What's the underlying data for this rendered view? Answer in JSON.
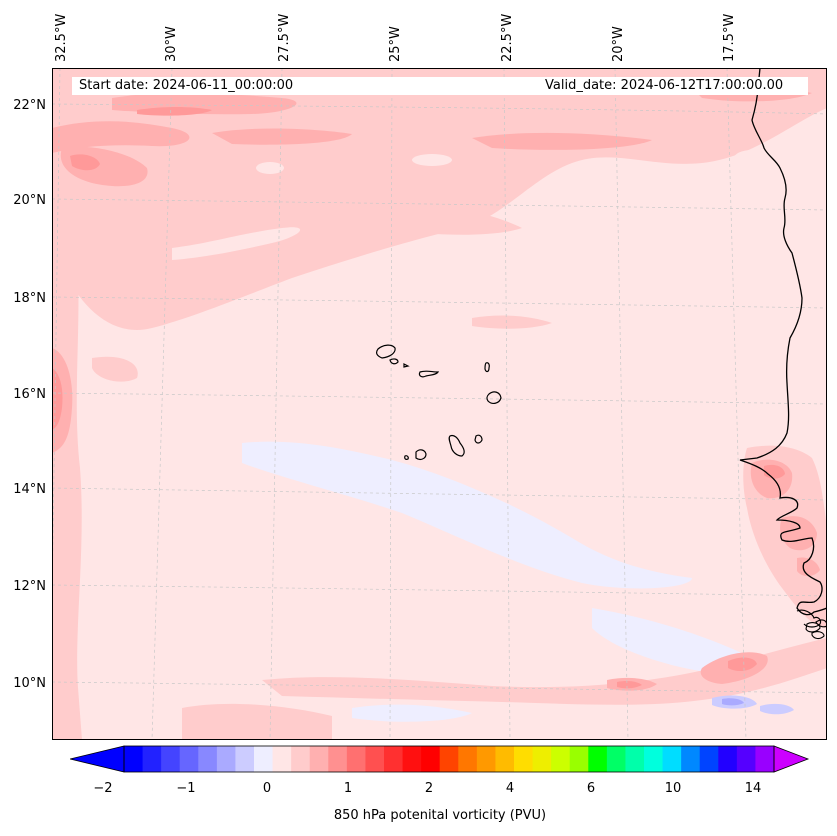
{
  "header": {
    "start_date": "Start date: 2024-06-11_00:00:00",
    "valid_date": "Valid_date: 2024-06-12T17:00:00.00"
  },
  "map": {
    "longitude_labels": [
      "32.5°W",
      "30°W",
      "27.5°W",
      "25°W",
      "22.5°W",
      "20°W",
      "17.5°W"
    ],
    "latitude_labels": [
      "22°N",
      "20°N",
      "18°N",
      "16°N",
      "14°N",
      "12°N",
      "10°N"
    ],
    "gridlines": "dashed",
    "colors": {
      "background_field": "#ffe6e6",
      "light_pink": "#ffcccc",
      "medium_pink": "#ffb0b0",
      "dark_pink": "#ff9999",
      "light_lavender": "#eeeeff",
      "lavender": "#ccccff",
      "coastline": "#000000"
    }
  },
  "colorbar": {
    "title": "850 hPa potenital vorticity (PVU)",
    "tick_labels": [
      "−2",
      "−1",
      "0",
      "1",
      "2",
      "4",
      "6",
      "10",
      "14"
    ],
    "colors": [
      "#0000ff",
      "#2222ff",
      "#4444ff",
      "#6666ff",
      "#8888ff",
      "#aaaaff",
      "#ccccff",
      "#eeeeff",
      "#ffe6e6",
      "#ffcccc",
      "#ffb0b0",
      "#ff9090",
      "#ff7070",
      "#ff5050",
      "#ff3030",
      "#ff1010",
      "#ff0000",
      "#ff4400",
      "#ff7700",
      "#ff9900",
      "#ffbb00",
      "#ffdd00",
      "#eeee00",
      "#ccff00",
      "#99ff00",
      "#00ff00",
      "#00ff66",
      "#00ffaa",
      "#00ffdd",
      "#00ddff",
      "#0088ff",
      "#0044ff",
      "#2200ff",
      "#5500ff",
      "#9900ff"
    ],
    "extend_low_color": "#0000ff",
    "extend_high_color": "#cc00ff"
  }
}
